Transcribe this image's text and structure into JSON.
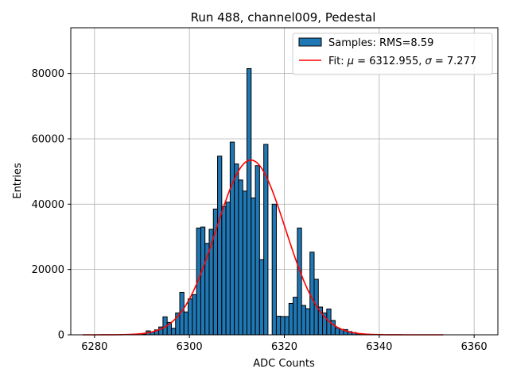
{
  "chart_data": {
    "type": "bar",
    "title": "Run 488, channel009, Pedestal",
    "xlabel": "ADC Counts",
    "ylabel": "Entries",
    "xlim": [
      6275,
      6365
    ],
    "ylim": [
      0,
      94000
    ],
    "xticks": [
      6280,
      6300,
      6320,
      6340,
      6360
    ],
    "yticks": [
      0,
      20000,
      40000,
      60000,
      80000
    ],
    "xtick_labels": [
      "6280",
      "6300",
      "6320",
      "6340",
      "6360"
    ],
    "ytick_labels": [
      "0",
      "20000",
      "40000",
      "60000",
      "80000"
    ],
    "grid": true,
    "legend_position": "top-right",
    "histogram": {
      "name": "Samples: RMS=8.59",
      "color": "#1f77b4",
      "bin_start": 6290.0,
      "bin_width": 0.885,
      "values": [
        200,
        1200,
        900,
        1500,
        2400,
        5500,
        3800,
        2000,
        6700,
        13000,
        7000,
        11000,
        12300,
        32700,
        33000,
        28000,
        32300,
        38500,
        54700,
        39300,
        40600,
        59000,
        52300,
        47400,
        44000,
        81500,
        41900,
        51800,
        23000,
        58300,
        0,
        40000,
        5700,
        5600,
        5600,
        9600,
        11500,
        32700,
        9000,
        8000,
        25300,
        17000,
        8500,
        6700,
        7900,
        4400,
        2100,
        1700,
        1600,
        1000,
        700,
        300,
        200,
        100,
        100
      ]
    },
    "fit": {
      "name": "Fit: μ = 6312.955, σ = 7.277",
      "label_prefix": "Fit: ",
      "mu_symbol": "μ",
      "mu_text": " = 6312.955, ",
      "sigma_symbol": "σ",
      "sigma_text": " = 7.277",
      "mu": 6312.955,
      "sigma": 7.277,
      "amplitude": 53500,
      "x_range": [
        6277.5,
        6353.5
      ],
      "color": "#ff0000"
    }
  }
}
